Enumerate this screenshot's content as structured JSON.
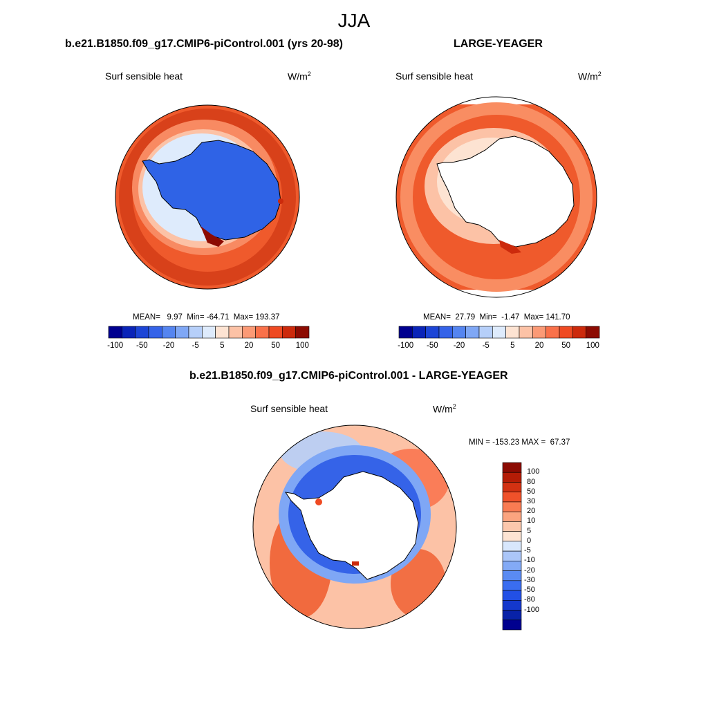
{
  "title": "JJA",
  "panels": [
    {
      "title": "b.e21.B1850.f09_g17.CMIP6-piControl.001 (yrs 20-98)",
      "var_label": "Surf sensible heat",
      "units": "W/m",
      "units_exp": "2",
      "stats": "MEAN=   9.97  Min= -64.71  Max= 193.37",
      "land_fill": "#2f63e6"
    },
    {
      "title": "LARGE-YEAGER",
      "var_label": "Surf sensible heat",
      "units": "W/m",
      "units_exp": "2",
      "stats": "MEAN=  27.79  Min=  -1.47  Max= 141.70",
      "land_fill": "#ffffff"
    },
    {
      "title": "b.e21.B1850.f09_g17.CMIP6-piControl.001 - LARGE-YEAGER",
      "var_label": "Surf sensible heat",
      "units": "W/m",
      "units_exp": "2",
      "stats": "MIN = -153.23 MAX =  67.37",
      "land_fill": "#ffffff"
    }
  ],
  "colorbar_horizontal": {
    "colors": [
      "#00008f",
      "#0a24b8",
      "#1c45d6",
      "#3563e8",
      "#5585f0",
      "#7fa7f5",
      "#b6cff9",
      "#deebfc",
      "#fde3d2",
      "#fcc2a6",
      "#fb9a76",
      "#f9714a",
      "#ef4a22",
      "#cc2a0c",
      "#8c0b02"
    ],
    "labels": [
      "-100",
      "-50",
      "-20",
      "-5",
      "5",
      "20",
      "50",
      "100"
    ]
  },
  "colorbar_vertical": {
    "colors": [
      "#00008f",
      "#0822a8",
      "#1438cc",
      "#2250e6",
      "#3a6df0",
      "#5a8bf3",
      "#83aaf6",
      "#abc6f8",
      "#d8e7fc",
      "#fde4d3",
      "#fcc7ac",
      "#fba47f",
      "#f97b52",
      "#f0512a",
      "#d23112",
      "#b41c06",
      "#8c0b02"
    ],
    "labels": [
      "100",
      "80",
      "50",
      "30",
      "20",
      "10",
      "5",
      "0",
      "-5",
      "-10",
      "-20",
      "-30",
      "-50",
      "-80",
      "-100"
    ]
  }
}
